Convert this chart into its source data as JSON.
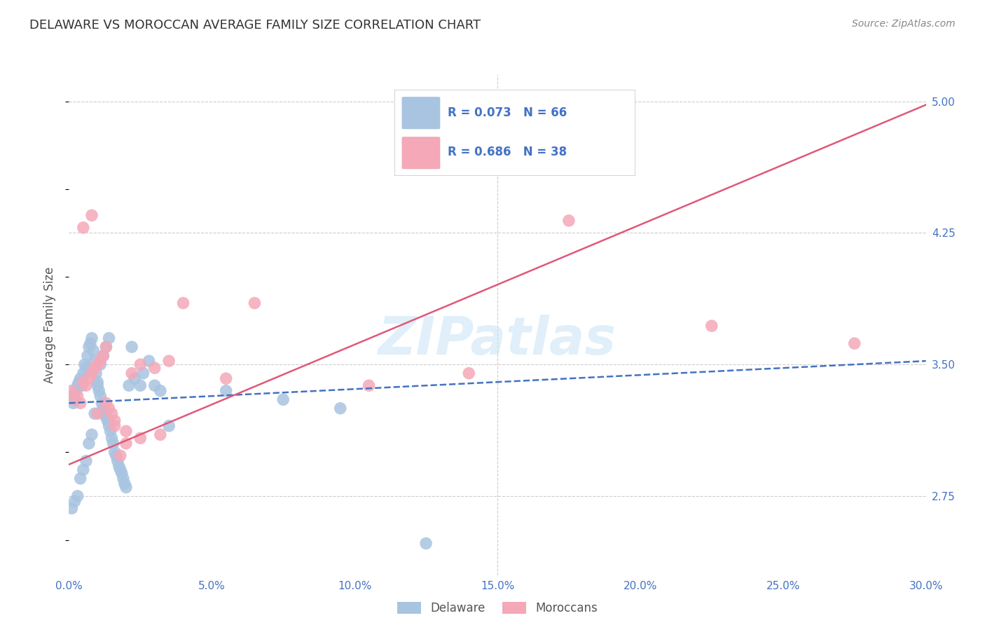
{
  "title": "DELAWARE VS MOROCCAN AVERAGE FAMILY SIZE CORRELATION CHART",
  "source": "Source: ZipAtlas.com",
  "ylabel": "Average Family Size",
  "xlim": [
    0.0,
    30.0
  ],
  "ylim": [
    2.3,
    5.15
  ],
  "yticks_right": [
    2.75,
    3.5,
    4.25,
    5.0
  ],
  "ytick_labels_right": [
    "2.75",
    "3.50",
    "4.25",
    "5.00"
  ],
  "xticks": [
    0.0,
    5.0,
    10.0,
    15.0,
    20.0,
    25.0,
    30.0
  ],
  "xtick_labels": [
    "0.0%",
    "5.0%",
    "10.0%",
    "15.0%",
    "20.0%",
    "25.0%",
    "30.0%"
  ],
  "delaware_R": 0.073,
  "delaware_N": 66,
  "moroccan_R": 0.686,
  "moroccan_N": 38,
  "delaware_color": "#a8c4e0",
  "moroccan_color": "#f4a8b8",
  "delaware_line_color": "#4472c4",
  "moroccan_line_color": "#e05878",
  "legend_label1": "Delaware",
  "legend_label2": "Moroccans",
  "watermark": "ZIPatlas",
  "background_color": "#ffffff",
  "grid_color": "#cccccc",
  "title_color": "#333333",
  "axis_label_color": "#555555",
  "tick_color": "#4472c4",
  "delaware_line_x0": 0.0,
  "delaware_line_y0": 3.28,
  "delaware_line_x1": 30.0,
  "delaware_line_y1": 3.52,
  "moroccan_line_x0": 0.0,
  "moroccan_line_y0": 2.93,
  "moroccan_line_x1": 30.0,
  "moroccan_line_y1": 4.98,
  "delaware_points_x": [
    0.1,
    0.15,
    0.2,
    0.25,
    0.3,
    0.35,
    0.4,
    0.45,
    0.5,
    0.55,
    0.6,
    0.65,
    0.7,
    0.75,
    0.8,
    0.85,
    0.9,
    0.95,
    1.0,
    1.05,
    1.1,
    1.15,
    1.2,
    1.25,
    1.3,
    1.35,
    1.4,
    1.45,
    1.5,
    1.55,
    1.6,
    1.65,
    1.7,
    1.75,
    1.8,
    1.85,
    1.9,
    1.95,
    2.0,
    2.1,
    2.2,
    2.3,
    2.5,
    2.6,
    2.8,
    3.0,
    3.2,
    3.5,
    0.1,
    0.2,
    0.3,
    0.4,
    0.5,
    0.6,
    0.7,
    0.8,
    0.9,
    1.0,
    1.1,
    1.2,
    1.3,
    1.4,
    5.5,
    7.5,
    9.5,
    12.5
  ],
  "delaware_points_y": [
    3.32,
    3.28,
    3.3,
    3.35,
    3.38,
    3.4,
    3.42,
    3.38,
    3.45,
    3.5,
    3.48,
    3.55,
    3.6,
    3.62,
    3.65,
    3.58,
    3.52,
    3.45,
    3.4,
    3.35,
    3.32,
    3.28,
    3.25,
    3.22,
    3.2,
    3.18,
    3.15,
    3.12,
    3.08,
    3.05,
    3.0,
    2.98,
    2.95,
    2.92,
    2.9,
    2.88,
    2.85,
    2.82,
    2.8,
    3.38,
    3.6,
    3.42,
    3.38,
    3.45,
    3.52,
    3.38,
    3.35,
    3.15,
    2.68,
    2.72,
    2.75,
    2.85,
    2.9,
    2.95,
    3.05,
    3.1,
    3.22,
    3.38,
    3.5,
    3.55,
    3.6,
    3.65,
    3.35,
    3.3,
    3.25,
    2.48
  ],
  "moroccan_points_x": [
    0.1,
    0.2,
    0.3,
    0.4,
    0.5,
    0.6,
    0.7,
    0.8,
    0.9,
    1.0,
    1.1,
    1.2,
    1.3,
    1.4,
    1.5,
    1.6,
    1.8,
    2.0,
    2.2,
    2.5,
    3.0,
    3.5,
    5.5,
    10.5,
    14.0,
    17.5,
    22.5,
    27.5,
    0.5,
    0.8,
    1.0,
    1.3,
    1.6,
    2.0,
    2.5,
    3.2,
    4.0,
    6.5
  ],
  "moroccan_points_y": [
    3.35,
    3.3,
    3.32,
    3.28,
    3.4,
    3.38,
    3.42,
    3.45,
    3.48,
    3.5,
    3.52,
    3.55,
    3.6,
    3.25,
    3.22,
    3.18,
    2.98,
    3.05,
    3.45,
    3.5,
    3.48,
    3.52,
    3.42,
    3.38,
    3.45,
    4.32,
    3.72,
    3.62,
    4.28,
    4.35,
    3.22,
    3.28,
    3.15,
    3.12,
    3.08,
    3.1,
    3.85,
    3.85
  ]
}
